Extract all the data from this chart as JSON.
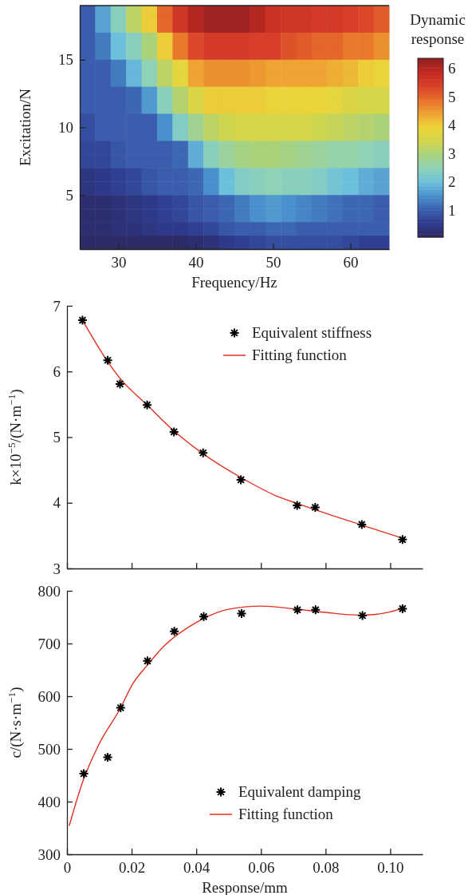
{
  "chart_data": [
    {
      "type": "heatmap",
      "xlabel": "Frequency/Hz",
      "ylabel": "Excitation/N",
      "clabel": "Dynamic response",
      "xlim": [
        25,
        65
      ],
      "xticks": [
        30,
        40,
        50,
        60
      ],
      "ylim": [
        1,
        19
      ],
      "yticks": [
        5,
        10,
        15
      ],
      "clim": [
        0.05,
        6.35
      ],
      "cticks": [
        1,
        2,
        3,
        4,
        5,
        6
      ],
      "cells": [
        [
          1.0,
          1.7,
          2.4,
          3.2,
          4.0,
          5.0,
          5.6,
          6.0,
          6.2,
          6.2,
          6.2,
          6.0,
          5.7,
          5.6,
          5.6,
          5.5,
          5.5,
          5.4,
          5.3,
          5.1
        ],
        [
          1.0,
          1.7,
          2.4,
          3.2,
          4.0,
          5.0,
          5.6,
          6.0,
          6.2,
          6.2,
          6.2,
          6.0,
          5.7,
          5.6,
          5.6,
          5.5,
          5.5,
          5.4,
          5.3,
          5.1
        ],
        [
          1.0,
          1.3,
          2.0,
          2.4,
          3.0,
          4.0,
          4.8,
          5.3,
          5.5,
          5.5,
          5.5,
          5.4,
          5.4,
          5.2,
          5.1,
          5.0,
          5.0,
          4.8,
          4.8,
          4.6
        ],
        [
          1.0,
          1.3,
          2.0,
          2.4,
          3.0,
          4.0,
          4.8,
          5.3,
          5.5,
          5.5,
          5.5,
          5.4,
          5.4,
          5.2,
          5.1,
          5.0,
          5.0,
          4.8,
          4.8,
          4.6
        ],
        [
          1.0,
          1.0,
          1.3,
          1.9,
          2.5,
          3.2,
          3.8,
          4.4,
          4.6,
          4.6,
          4.6,
          4.5,
          4.4,
          4.4,
          4.4,
          4.4,
          4.3,
          4.2,
          4.0,
          3.9
        ],
        [
          1.0,
          1.0,
          1.3,
          1.9,
          2.5,
          3.2,
          3.8,
          4.4,
          4.6,
          4.6,
          4.6,
          4.5,
          4.4,
          4.4,
          4.4,
          4.4,
          4.3,
          4.2,
          4.0,
          3.9
        ],
        [
          1.0,
          1.0,
          1.0,
          1.1,
          1.6,
          2.4,
          3.1,
          3.6,
          4.0,
          4.0,
          4.0,
          4.0,
          3.9,
          3.9,
          3.9,
          3.9,
          3.8,
          3.6,
          3.5,
          3.5
        ],
        [
          1.0,
          1.0,
          1.0,
          1.1,
          1.6,
          2.4,
          3.1,
          3.6,
          4.0,
          4.0,
          4.0,
          4.0,
          3.9,
          3.9,
          3.9,
          3.9,
          3.8,
          3.6,
          3.5,
          3.5
        ],
        [
          0.8,
          1.0,
          1.0,
          1.0,
          1.0,
          1.5,
          2.3,
          2.8,
          3.2,
          3.4,
          3.5,
          3.5,
          3.5,
          3.5,
          3.5,
          3.4,
          3.3,
          3.2,
          3.1,
          3.0
        ],
        [
          0.8,
          1.0,
          1.0,
          1.0,
          1.0,
          1.5,
          2.3,
          2.8,
          3.2,
          3.4,
          3.5,
          3.5,
          3.5,
          3.5,
          3.5,
          3.4,
          3.3,
          3.2,
          3.1,
          3.0
        ],
        [
          0.7,
          0.7,
          0.9,
          1.0,
          1.0,
          1.0,
          1.1,
          1.8,
          2.4,
          2.7,
          2.9,
          3.0,
          3.0,
          2.9,
          2.8,
          2.7,
          2.6,
          2.6,
          2.5,
          2.4
        ],
        [
          0.7,
          0.7,
          0.9,
          1.0,
          1.0,
          1.0,
          1.1,
          1.8,
          2.4,
          2.7,
          2.9,
          3.0,
          3.0,
          2.9,
          2.8,
          2.7,
          2.6,
          2.6,
          2.5,
          2.4
        ],
        [
          0.4,
          0.5,
          0.6,
          0.7,
          0.9,
          1.0,
          1.0,
          1.1,
          1.5,
          2.0,
          2.3,
          2.4,
          2.5,
          2.4,
          2.4,
          2.3,
          2.1,
          2.0,
          1.8,
          1.7
        ],
        [
          0.4,
          0.5,
          0.6,
          0.7,
          0.9,
          1.0,
          1.0,
          1.1,
          1.5,
          2.0,
          2.3,
          2.4,
          2.5,
          2.4,
          2.4,
          2.3,
          2.1,
          2.0,
          1.8,
          1.7
        ],
        [
          0.2,
          0.2,
          0.3,
          0.4,
          0.5,
          0.6,
          0.7,
          0.9,
          1.0,
          1.1,
          1.3,
          1.5,
          1.6,
          1.5,
          1.4,
          1.3,
          1.2,
          1.1,
          1.1,
          1.0
        ],
        [
          0.2,
          0.2,
          0.3,
          0.4,
          0.5,
          0.6,
          0.7,
          0.9,
          1.0,
          1.1,
          1.3,
          1.5,
          1.6,
          1.5,
          1.4,
          1.3,
          1.2,
          1.1,
          1.1,
          1.0
        ],
        [
          0.2,
          0.2,
          0.3,
          0.3,
          0.4,
          0.5,
          0.5,
          0.6,
          0.7,
          0.9,
          1.0,
          1.0,
          1.1,
          1.1,
          1.0,
          1.0,
          1.0,
          1.0,
          1.0,
          1.0
        ],
        [
          0.1,
          0.1,
          0.1,
          0.1,
          0.1,
          0.1,
          0.1,
          0.2,
          0.3,
          0.5,
          0.6,
          0.7,
          0.8,
          0.8,
          0.8,
          0.8,
          0.8,
          0.7,
          0.6,
          0.6
        ]
      ]
    },
    {
      "type": "scatter",
      "ylabel": "k×10$^{−5}$/(N·m$^{−1}$)",
      "xlim": [
        0,
        0.11
      ],
      "xticks": [
        {
          "value": 0,
          "label": null
        },
        {
          "value": 0.02,
          "label": null
        },
        {
          "value": 0.04,
          "label": null
        },
        {
          "value": 0.06,
          "label": null
        },
        {
          "value": 0.08,
          "label": null
        },
        {
          "value": 0.1,
          "label": null
        }
      ],
      "ylim": [
        3,
        7
      ],
      "yticks": [
        3,
        4,
        5,
        6,
        7
      ],
      "tick_labels": "y",
      "legend": "top right",
      "grid": false,
      "series": [
        {
          "name": "Equivalent stiffness",
          "type": "scatter",
          "marker": "cross",
          "color": "#000000",
          "x": [
            0.0048,
            0.0126,
            0.0164,
            0.0248,
            0.0331,
            0.0421,
            0.0538,
            0.0712,
            0.0768,
            0.0912,
            0.1038
          ],
          "values": [
            6.78,
            6.17,
            5.81,
            5.49,
            5.08,
            4.76,
            4.35,
            3.96,
            3.93,
            3.67,
            3.44
          ]
        },
        {
          "name": "Fitting function",
          "type": "line",
          "marker": "none",
          "line_style": "solid",
          "color": "#e03020",
          "x": [
            0.0048,
            0.0126,
            0.016,
            0.025,
            0.033,
            0.042,
            0.054,
            0.065,
            0.0712,
            0.08,
            0.09,
            0.1038
          ],
          "values": [
            6.78,
            6.15,
            5.92,
            5.48,
            5.1,
            4.75,
            4.38,
            4.1,
            3.99,
            3.84,
            3.68,
            3.46
          ]
        }
      ]
    },
    {
      "type": "scatter",
      "xlabel": "Response/mm",
      "ylabel": "c/(N·s·m$^{−1}$)",
      "xlim": [
        0,
        0.11
      ],
      "xticks": [
        0,
        0.02,
        0.04,
        0.06,
        0.08,
        {
          "value": 0.1,
          "label": "0.10"
        }
      ],
      "ylim": [
        300,
        800
      ],
      "yticks": [
        300,
        400,
        500,
        600,
        700,
        800
      ],
      "legend": "bottom right",
      "grid": false,
      "series": [
        {
          "name": "Equivalent damping",
          "type": "scatter",
          "marker": "cross",
          "color": "#000000",
          "x": [
            0.0052,
            0.0126,
            0.0166,
            0.0249,
            0.0332,
            0.0423,
            0.054,
            0.0713,
            0.0769,
            0.0914,
            0.1038
          ],
          "values": [
            453,
            484,
            578,
            667,
            723,
            751,
            757,
            764,
            764,
            753,
            766
          ]
        },
        {
          "name": "Fitting function",
          "type": "line",
          "marker": "none",
          "line_style": "solid",
          "color": "#e03020",
          "x": [
            0.0007,
            0.005,
            0.01,
            0.0166,
            0.02,
            0.025,
            0.03,
            0.04,
            0.05,
            0.06,
            0.07,
            0.08,
            0.09,
            0.095,
            0.1,
            0.1038
          ],
          "values": [
            354,
            440,
            510,
            578,
            620,
            660,
            695,
            740,
            765,
            771,
            766,
            759,
            754,
            755,
            760,
            767
          ]
        }
      ]
    }
  ]
}
